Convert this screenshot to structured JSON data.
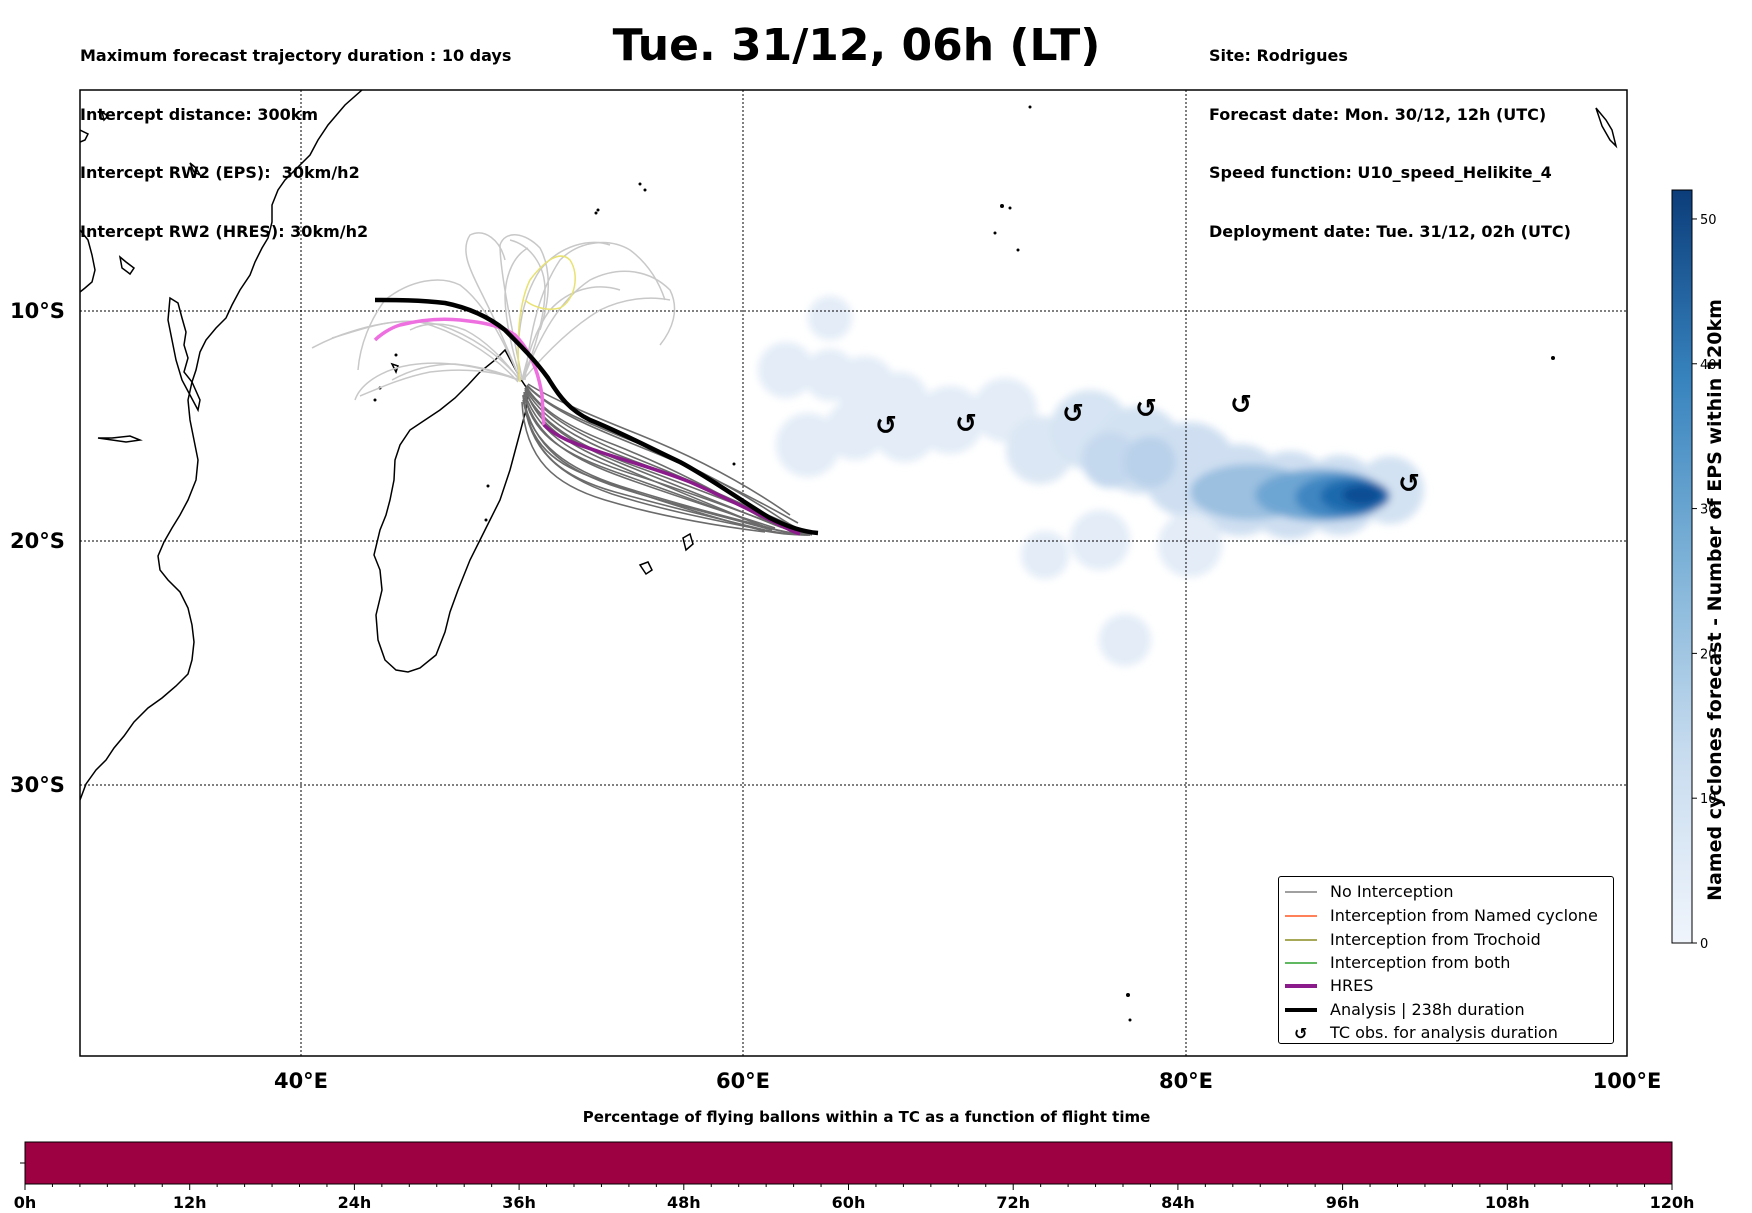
{
  "info_left": [
    "Maximum forecast trajectory duration : 10 days",
    "Intercept distance: 300km",
    "Intercept RW2 (EPS):  30km/h2",
    "Intercept RW2 (HRES): 30km/h2"
  ],
  "info_right": [
    "Site: Rodrigues",
    "Forecast date: Mon. 30/12, 12h (UTC)",
    "Speed function: U10_speed_Helikite_4",
    "Deployment date: Tue. 31/12, 02h (UTC)"
  ],
  "title": "Tue. 31/12, 06h (LT)",
  "map": {
    "lon_ticks": [
      "40°E",
      "60°E",
      "80°E",
      "100°E"
    ],
    "lat_ticks": [
      "10°S",
      "20°S",
      "30°S"
    ],
    "lon_range": [
      30,
      100
    ],
    "lat_range": [
      -43.7,
      -0.1
    ]
  },
  "legend": [
    {
      "label": "No Interception",
      "color": "#808080",
      "kind": "line"
    },
    {
      "label": "Interception from Named cyclone",
      "color": "#ff5722",
      "kind": "line"
    },
    {
      "label": "Interception from Trochoid",
      "color": "#8b8b22",
      "kind": "line"
    },
    {
      "label": "Interception from both",
      "color": "#2ca02c",
      "kind": "line"
    },
    {
      "label": "HRES",
      "color": "#8b1a8b",
      "kind": "thick-line"
    },
    {
      "label": "Analysis | 238h duration",
      "color": "#000000",
      "kind": "thick-line"
    },
    {
      "label": "TC obs. for analysis duration",
      "color": "#000000",
      "kind": "symbol"
    }
  ],
  "tc_symbol": "↺",
  "colorbar_vertical": {
    "label": "Named cyclones forecast - Number of EPS within 120km",
    "ticks": [
      "0",
      "10",
      "20",
      "30",
      "40",
      "50"
    ],
    "min": 0,
    "max": 52,
    "color_low": "#f0f5fc",
    "color_high": "#0b3d7a"
  },
  "colorbar_horizontal": {
    "title": "Percentage of flying ballons within a TC as a function of flight time",
    "ticks": [
      "0h",
      "12h",
      "24h",
      "36h",
      "48h",
      "60h",
      "72h",
      "84h",
      "96h",
      "108h",
      "120h"
    ],
    "fill_color": "#9e0142"
  }
}
